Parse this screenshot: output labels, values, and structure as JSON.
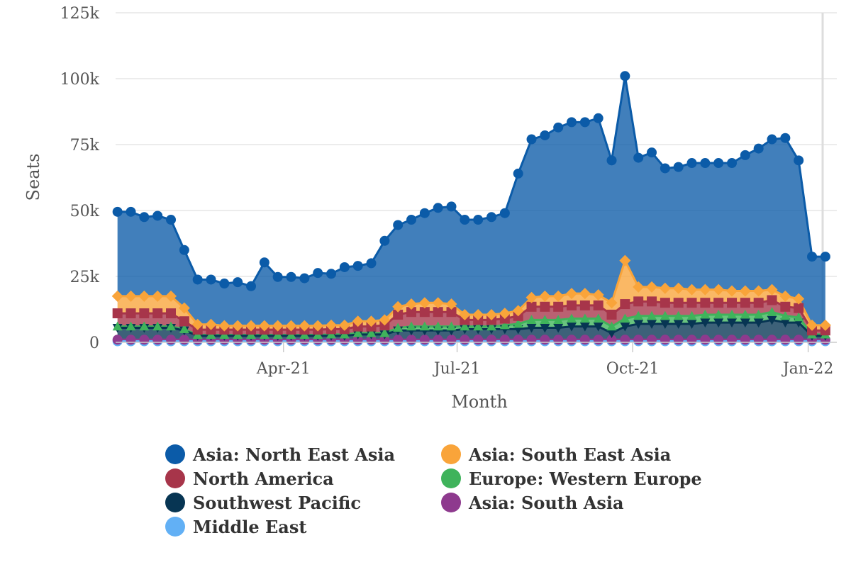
{
  "chart_data": {
    "type": "area",
    "title": "",
    "xlabel": "Month",
    "ylabel": "Seats",
    "ylim": [
      0,
      125000
    ],
    "yticks": [
      {
        "value": 0,
        "label": "0"
      },
      {
        "value": 25000,
        "label": "25k"
      },
      {
        "value": 50000,
        "label": "50k"
      },
      {
        "value": 75000,
        "label": "75k"
      },
      {
        "value": 100000,
        "label": "100k"
      },
      {
        "value": 125000,
        "label": "125k"
      }
    ],
    "xlim": [
      "2021-01-03",
      "2022-01-16"
    ],
    "xticks": [
      {
        "date": "2021-04-01",
        "label": "Apr-21"
      },
      {
        "date": "2021-07-01",
        "label": "Jul-21"
      },
      {
        "date": "2021-10-01",
        "label": "Oct-21"
      },
      {
        "date": "2022-01-01",
        "label": "Jan-22"
      }
    ],
    "x": [
      "2021-01-04",
      "2021-01-11",
      "2021-01-18",
      "2021-01-25",
      "2021-02-01",
      "2021-02-08",
      "2021-02-15",
      "2021-02-22",
      "2021-03-01",
      "2021-03-08",
      "2021-03-15",
      "2021-03-22",
      "2021-03-29",
      "2021-04-05",
      "2021-04-12",
      "2021-04-19",
      "2021-04-26",
      "2021-05-03",
      "2021-05-10",
      "2021-05-17",
      "2021-05-24",
      "2021-05-31",
      "2021-06-07",
      "2021-06-14",
      "2021-06-21",
      "2021-06-28",
      "2021-07-05",
      "2021-07-12",
      "2021-07-19",
      "2021-07-26",
      "2021-08-02",
      "2021-08-09",
      "2021-08-16",
      "2021-08-23",
      "2021-08-30",
      "2021-09-06",
      "2021-09-13",
      "2021-09-20",
      "2021-09-27",
      "2021-10-04",
      "2021-10-11",
      "2021-10-18",
      "2021-10-25",
      "2021-11-01",
      "2021-11-08",
      "2021-11-15",
      "2021-11-22",
      "2021-11-29",
      "2021-12-06",
      "2021-12-13",
      "2021-12-20",
      "2021-12-27",
      "2022-01-03",
      "2022-01-10"
    ],
    "stacked": true,
    "grid": true,
    "legend_position": "bottom",
    "series": [
      {
        "name": "Asia: North East Asia",
        "color": "#0b5ba8",
        "marker": "circle",
        "values": [
          32000,
          32000,
          30000,
          30500,
          29000,
          22000,
          17000,
          17000,
          16000,
          16500,
          15000,
          24000,
          18500,
          18500,
          18000,
          20000,
          19500,
          22000,
          21000,
          22000,
          30000,
          31000,
          32000,
          34000,
          36000,
          37000,
          36000,
          36000,
          37000,
          38000,
          52000,
          60000,
          61000,
          64000,
          65000,
          65000,
          67000,
          54000,
          70000,
          49000,
          51000,
          45500,
          46000,
          48000,
          48000,
          48000,
          48500,
          51500,
          54000,
          57000,
          60000,
          52500,
          26000,
          26000
        ]
      },
      {
        "name": "Asia: South East Asia",
        "color": "#f9a43a",
        "marker": "diamond",
        "values": [
          6500,
          6500,
          6500,
          6500,
          6500,
          5000,
          2000,
          2000,
          1500,
          1500,
          1500,
          1500,
          1500,
          1500,
          1500,
          1500,
          1500,
          1500,
          2000,
          2000,
          2000,
          3000,
          3000,
          3500,
          3500,
          3000,
          2000,
          2000,
          2000,
          2000,
          2000,
          3500,
          4000,
          4000,
          4500,
          4500,
          4000,
          4500,
          16500,
          5500,
          5500,
          5500,
          5500,
          5000,
          5000,
          5000,
          4500,
          4500,
          4500,
          4000,
          4000,
          3500,
          2000,
          2000
        ]
      },
      {
        "name": "North America",
        "color": "#a7354a",
        "marker": "square",
        "values": [
          5000,
          5000,
          5000,
          5000,
          5000,
          3000,
          2000,
          2000,
          2000,
          2000,
          2000,
          2000,
          2000,
          2000,
          2000,
          2000,
          2000,
          2000,
          2500,
          2500,
          3000,
          5000,
          5500,
          5500,
          5500,
          5500,
          2500,
          2500,
          2500,
          2500,
          3000,
          5000,
          5000,
          5000,
          5000,
          5000,
          5000,
          4500,
          5500,
          5500,
          5500,
          5000,
          5000,
          5000,
          4500,
          4500,
          4500,
          4500,
          4500,
          4500,
          3500,
          3500,
          1500,
          1500
        ]
      },
      {
        "name": "Europe: Western Europe",
        "color": "#3fb35b",
        "marker": "triangle",
        "values": [
          500,
          500,
          500,
          500,
          500,
          500,
          300,
          300,
          300,
          300,
          300,
          300,
          300,
          300,
          300,
          300,
          500,
          500,
          500,
          500,
          500,
          1000,
          1500,
          1500,
          1500,
          1500,
          1000,
          1000,
          1000,
          1500,
          2000,
          3000,
          3000,
          3000,
          3000,
          3000,
          3000,
          2500,
          3000,
          3000,
          3000,
          3000,
          3000,
          3000,
          3000,
          3000,
          3000,
          3000,
          3000,
          3000,
          2500,
          2000,
          500,
          500
        ]
      },
      {
        "name": "Southwest Pacific",
        "color": "#073553",
        "marker": "triangle-down",
        "values": [
          4500,
          4500,
          4500,
          4500,
          4500,
          3500,
          1500,
          1500,
          1500,
          1500,
          1500,
          1500,
          1500,
          1500,
          1500,
          1500,
          1500,
          1500,
          2000,
          2000,
          2000,
          3500,
          3500,
          3500,
          3500,
          3500,
          4000,
          4000,
          4000,
          4000,
          4000,
          4500,
          4500,
          4500,
          5000,
          5000,
          5000,
          2500,
          5000,
          6000,
          6000,
          6000,
          6000,
          6000,
          6500,
          6500,
          6500,
          6500,
          6500,
          7500,
          6500,
          6500,
          1500,
          1500
        ]
      },
      {
        "name": "Asia: South Asia",
        "color": "#8e3a8e",
        "marker": "circle",
        "values": [
          600,
          600,
          600,
          600,
          600,
          600,
          600,
          600,
          600,
          600,
          600,
          600,
          600,
          600,
          600,
          600,
          600,
          600,
          600,
          600,
          600,
          600,
          600,
          600,
          600,
          600,
          600,
          600,
          600,
          600,
          600,
          600,
          600,
          600,
          600,
          600,
          600,
          600,
          600,
          600,
          600,
          600,
          600,
          600,
          600,
          600,
          600,
          600,
          600,
          600,
          600,
          600,
          600,
          600
        ]
      },
      {
        "name": "Middle East",
        "color": "#62b0f5",
        "marker": "circle",
        "values": [
          400,
          400,
          400,
          400,
          400,
          400,
          400,
          400,
          400,
          400,
          400,
          400,
          400,
          400,
          400,
          400,
          400,
          400,
          400,
          400,
          400,
          400,
          400,
          400,
          400,
          400,
          400,
          400,
          400,
          400,
          400,
          400,
          400,
          400,
          400,
          400,
          400,
          400,
          400,
          400,
          400,
          400,
          400,
          400,
          400,
          400,
          400,
          400,
          400,
          400,
          400,
          400,
          400,
          400
        ]
      }
    ]
  }
}
